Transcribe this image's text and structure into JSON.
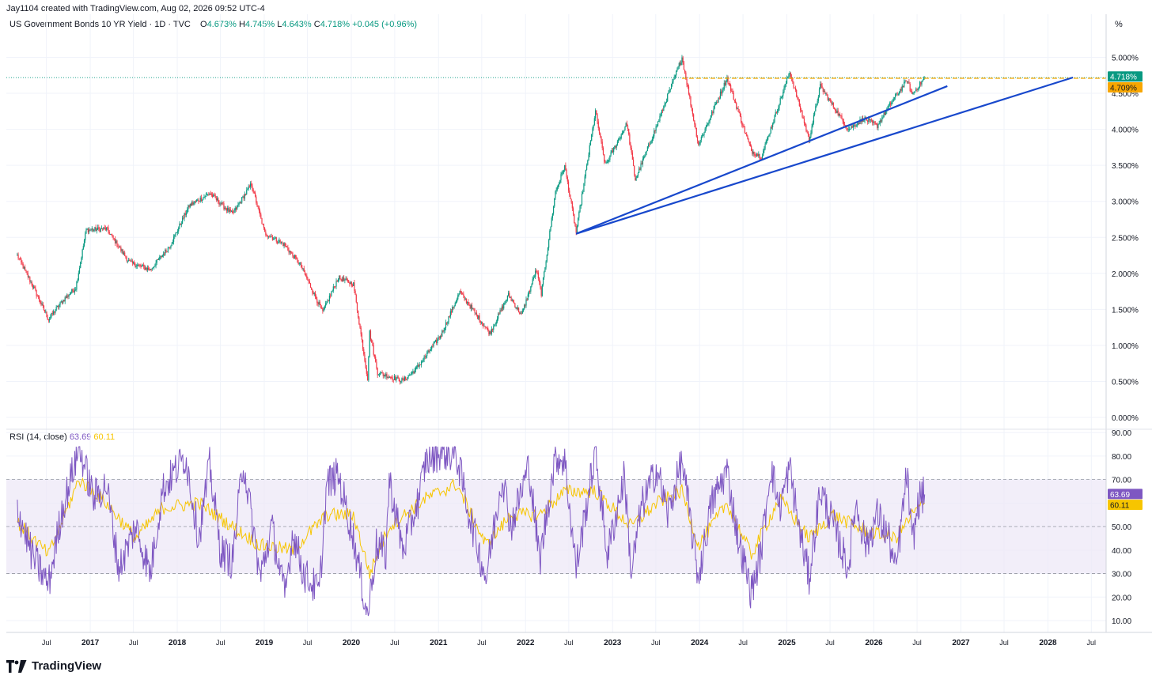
{
  "header": {
    "created_by": "Jay1104 created with TradingView.com, Aug 02, 2026 09:52 UTC-4"
  },
  "symbol": {
    "title": "US Government Bonds 10 YR Yield · 1D · TVC",
    "o_label": "O",
    "o_value": "4.673%",
    "h_label": "H",
    "h_value": "4.745%",
    "l_label": "L",
    "l_value": "4.643%",
    "c_label": "C",
    "c_value": "4.718%",
    "change": "+0.045 (+0.96%)"
  },
  "price_axis": {
    "unit_label": "%",
    "last_price": "4.718%",
    "level_label": "4.709%"
  },
  "rsi": {
    "title": "RSI (14, close)",
    "rsi_value": "63.69",
    "ma_value": "60.11"
  },
  "brand": {
    "logo_text": "TradingView"
  },
  "colors": {
    "up": "#089981",
    "down": "#f23645",
    "rsi": "#7e57c2",
    "rsi_ma": "#f7c500",
    "trendline": "#1848cc",
    "level": "#f7a600",
    "band": "#ede7f6"
  },
  "chart_data": [
    {
      "type": "candlestick",
      "title": "US Government Bonds 10 YR Yield · 1D · TVC",
      "ylim": [
        0,
        5.3
      ],
      "y_ticks": [
        "0.000%",
        "0.500%",
        "1.000%",
        "1.500%",
        "2.000%",
        "2.500%",
        "3.000%",
        "3.500%",
        "4.000%",
        "4.500%",
        "5.000%"
      ],
      "x_ticks": [
        "Jul",
        "2017",
        "Jul",
        "2018",
        "Jul",
        "2019",
        "Jul",
        "2020",
        "Jul",
        "2021",
        "Jul",
        "2022",
        "Jul",
        "2023",
        "Jul",
        "2024",
        "Jul",
        "2025",
        "Jul",
        "2026",
        "Jul",
        "2027",
        "Jul",
        "2028",
        "Jul"
      ],
      "series": [
        {
          "points": [
            [
              "2016-03-01",
              2.25
            ],
            [
              "2016-05-01",
              1.85
            ],
            [
              "2016-07-10",
              1.36
            ],
            [
              "2016-09-01",
              1.6
            ],
            [
              "2016-11-01",
              1.8
            ],
            [
              "2016-12-15",
              2.6
            ],
            [
              "2017-03-10",
              2.62
            ],
            [
              "2017-06-15",
              2.15
            ],
            [
              "2017-09-10",
              2.05
            ],
            [
              "2017-12-01",
              2.38
            ],
            [
              "2018-02-20",
              2.94
            ],
            [
              "2018-05-17",
              3.11
            ],
            [
              "2018-08-20",
              2.82
            ],
            [
              "2018-11-08",
              3.24
            ],
            [
              "2019-01-03",
              2.56
            ],
            [
              "2019-03-25",
              2.4
            ],
            [
              "2019-06-01",
              2.12
            ],
            [
              "2019-09-03",
              1.46
            ],
            [
              "2019-11-07",
              1.94
            ],
            [
              "2020-01-10",
              1.85
            ],
            [
              "2020-03-09",
              0.54
            ],
            [
              "2020-03-18",
              1.18
            ],
            [
              "2020-04-20",
              0.62
            ],
            [
              "2020-08-04",
              0.51
            ],
            [
              "2020-10-01",
              0.68
            ],
            [
              "2021-01-12",
              1.15
            ],
            [
              "2021-03-31",
              1.74
            ],
            [
              "2021-08-04",
              1.17
            ],
            [
              "2021-10-21",
              1.7
            ],
            [
              "2021-12-15",
              1.42
            ],
            [
              "2022-02-15",
              2.05
            ],
            [
              "2022-03-08",
              1.72
            ],
            [
              "2022-05-06",
              3.13
            ],
            [
              "2022-06-14",
              3.49
            ],
            [
              "2022-08-01",
              2.57
            ],
            [
              "2022-10-21",
              4.25
            ],
            [
              "2022-12-01",
              3.5
            ],
            [
              "2023-03-02",
              4.08
            ],
            [
              "2023-04-06",
              3.3
            ],
            [
              "2023-07-06",
              4.06
            ],
            [
              "2023-10-19",
              5.0
            ],
            [
              "2023-12-27",
              3.79
            ],
            [
              "2024-04-25",
              4.71
            ],
            [
              "2024-08-05",
              3.7
            ],
            [
              "2024-09-16",
              3.62
            ],
            [
              "2025-01-13",
              4.8
            ],
            [
              "2025-04-04",
              3.86
            ],
            [
              "2025-05-21",
              4.6
            ],
            [
              "2025-09-16",
              4.0
            ],
            [
              "2025-11-20",
              4.15
            ],
            [
              "2026-01-15",
              4.05
            ],
            [
              "2026-03-20",
              4.4
            ],
            [
              "2026-05-20",
              4.68
            ],
            [
              "2026-06-10",
              4.48
            ],
            [
              "2026-08-02",
              4.718
            ]
          ]
        }
      ],
      "last_price": 4.718,
      "horizontal_level": 4.709,
      "trendlines": [
        {
          "from": [
            "2022-08-01",
            2.55
          ],
          "to": [
            "2026-11-05",
            4.6
          ]
        },
        {
          "from": [
            "2022-08-01",
            2.55
          ],
          "to": [
            "2028-04-15",
            4.72
          ]
        }
      ]
    },
    {
      "type": "line",
      "title": "RSI (14, close)",
      "ylim": [
        5,
        92
      ],
      "y_ticks": [
        "10.00",
        "20.00",
        "30.00",
        "40.00",
        "50.00",
        "60.00",
        "70.00",
        "80.00",
        "90.00"
      ],
      "bands": [
        30,
        70
      ],
      "midline": 50,
      "last_rsi": 63.69,
      "last_ma": 60.11,
      "series": [
        {
          "name": "RSI",
          "points": [
            [
              "2016-03-01",
              58
            ],
            [
              "2016-05-01",
              38
            ],
            [
              "2016-07-10",
              25
            ],
            [
              "2016-09-01",
              55
            ],
            [
              "2016-11-15",
              84
            ],
            [
              "2017-01-15",
              62
            ],
            [
              "2017-03-10",
              68
            ],
            [
              "2017-05-01",
              32
            ],
            [
              "2017-07-10",
              50
            ],
            [
              "2017-09-10",
              30
            ],
            [
              "2017-11-01",
              66
            ],
            [
              "2018-02-05",
              80
            ],
            [
              "2018-04-01",
              45
            ],
            [
              "2018-05-17",
              76
            ],
            [
              "2018-07-01",
              40
            ],
            [
              "2018-08-20",
              35
            ],
            [
              "2018-10-05",
              78
            ],
            [
              "2018-12-15",
              28
            ],
            [
              "2019-02-01",
              50
            ],
            [
              "2019-03-28",
              20
            ],
            [
              "2019-05-01",
              48
            ],
            [
              "2019-06-15",
              30
            ],
            [
              "2019-08-20",
              22
            ],
            [
              "2019-09-20",
              68
            ],
            [
              "2019-11-07",
              72
            ],
            [
              "2020-01-10",
              45
            ],
            [
              "2020-03-09",
              12
            ],
            [
              "2020-04-15",
              42
            ],
            [
              "2020-05-25",
              38
            ],
            [
              "2020-06-08",
              70
            ],
            [
              "2020-08-04",
              40
            ],
            [
              "2020-10-10",
              62
            ],
            [
              "2020-11-09",
              78
            ],
            [
              "2021-01-12",
              82
            ],
            [
              "2021-03-18",
              80
            ],
            [
              "2021-05-10",
              55
            ],
            [
              "2021-07-19",
              28
            ],
            [
              "2021-09-25",
              72
            ],
            [
              "2021-11-01",
              50
            ],
            [
              "2022-01-15",
              76
            ],
            [
              "2022-03-01",
              35
            ],
            [
              "2022-05-06",
              80
            ],
            [
              "2022-06-14",
              78
            ],
            [
              "2022-08-01",
              32
            ],
            [
              "2022-10-21",
              82
            ],
            [
              "2022-12-10",
              38
            ],
            [
              "2023-02-20",
              72
            ],
            [
              "2023-03-20",
              30
            ],
            [
              "2023-05-01",
              58
            ],
            [
              "2023-07-06",
              75
            ],
            [
              "2023-08-20",
              55
            ],
            [
              "2023-10-19",
              78
            ],
            [
              "2023-12-27",
              28
            ],
            [
              "2024-02-20",
              60
            ],
            [
              "2024-04-25",
              74
            ],
            [
              "2024-06-10",
              45
            ],
            [
              "2024-08-05",
              22
            ],
            [
              "2024-09-16",
              40
            ],
            [
              "2024-10-25",
              76
            ],
            [
              "2024-12-01",
              58
            ],
            [
              "2025-01-13",
              75
            ],
            [
              "2025-02-20",
              50
            ],
            [
              "2025-04-04",
              28
            ],
            [
              "2025-05-21",
              66
            ],
            [
              "2025-07-10",
              52
            ],
            [
              "2025-09-16",
              32
            ],
            [
              "2025-10-15",
              60
            ],
            [
              "2025-12-01",
              42
            ],
            [
              "2026-01-15",
              55
            ],
            [
              "2026-03-05",
              45
            ],
            [
              "2026-04-02",
              30
            ],
            [
              "2026-05-20",
              73
            ],
            [
              "2026-06-10",
              42
            ],
            [
              "2026-07-10",
              62
            ],
            [
              "2026-08-02",
              63.69
            ]
          ]
        },
        {
          "name": "RSI MA",
          "points": [
            [
              "2016-03-01",
              52
            ],
            [
              "2016-07-10",
              38
            ],
            [
              "2016-11-15",
              70
            ],
            [
              "2017-03-10",
              60
            ],
            [
              "2017-07-10",
              45
            ],
            [
              "2017-11-01",
              58
            ],
            [
              "2018-04-01",
              60
            ],
            [
              "2018-08-20",
              50
            ],
            [
              "2018-12-15",
              42
            ],
            [
              "2019-05-01",
              40
            ],
            [
              "2019-09-20",
              55
            ],
            [
              "2020-01-10",
              55
            ],
            [
              "2020-03-18",
              30
            ],
            [
              "2020-06-08",
              50
            ],
            [
              "2020-11-09",
              62
            ],
            [
              "2021-03-18",
              68
            ],
            [
              "2021-07-19",
              42
            ],
            [
              "2021-11-01",
              55
            ],
            [
              "2022-03-01",
              55
            ],
            [
              "2022-06-14",
              65
            ],
            [
              "2022-10-21",
              65
            ],
            [
              "2023-03-20",
              50
            ],
            [
              "2023-07-06",
              60
            ],
            [
              "2023-10-19",
              65
            ],
            [
              "2023-12-27",
              42
            ],
            [
              "2024-04-25",
              60
            ],
            [
              "2024-08-05",
              38
            ],
            [
              "2024-12-01",
              62
            ],
            [
              "2025-04-04",
              45
            ],
            [
              "2025-07-10",
              55
            ],
            [
              "2025-12-01",
              48
            ],
            [
              "2026-04-02",
              45
            ],
            [
              "2026-06-10",
              55
            ],
            [
              "2026-08-02",
              60.11
            ]
          ]
        }
      ]
    }
  ]
}
